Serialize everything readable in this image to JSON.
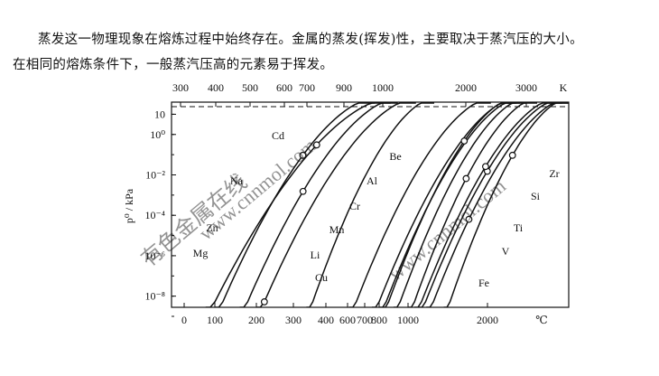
{
  "text": {
    "para1": "蒸发这一物理现象在熔炼过程中始终存在。金属的蒸发(挥发)性，主要取决于蒸汽压的大小。",
    "para2": "在相同的熔炼条件下，一般蒸汽压高的元素易于挥发。"
  },
  "watermark": [
    "有色金属在线",
    "www.cnnmol.com"
  ],
  "chart_data": {
    "type": "line",
    "title": "",
    "ylabel": "p⁰ / kPa",
    "top_axis": {
      "unit": "K",
      "ticks": [
        300,
        400,
        500,
        600,
        700,
        900,
        1000,
        2000,
        3000
      ]
    },
    "bottom_axis": {
      "unit": "℃",
      "ticks": [
        0,
        100,
        200,
        300,
        400,
        600,
        700,
        800,
        1000,
        2000
      ]
    },
    "y_ticks": [
      "10",
      "10⁰",
      "10⁻²",
      "10⁻⁴",
      "10⁻⁶",
      "10⁻⁸"
    ],
    "y_log_range": [
      -9,
      1.6
    ],
    "reference_line": {
      "style": "dashed",
      "value_kPa": 101
    },
    "series": [
      {
        "name": "Zn",
        "x_start_C": 160,
        "x_end_C": 930
      },
      {
        "name": "Mg",
        "x_start_C": 200,
        "x_end_C": 1100
      },
      {
        "name": "Na",
        "x_start_C": 70,
        "x_end_C": 880
      },
      {
        "name": "Cd",
        "x_start_C": 100,
        "x_end_C": 770
      },
      {
        "name": "Li",
        "x_start_C": 340,
        "x_end_C": 1330
      },
      {
        "name": "Mn",
        "x_start_C": 610,
        "x_end_C": 2060
      },
      {
        "name": "Al",
        "x_start_C": 750,
        "x_end_C": 2500
      },
      {
        "name": "Cu",
        "x_start_C": 800,
        "x_end_C": 2560
      },
      {
        "name": "Cr",
        "x_start_C": 900,
        "x_end_C": 2670
      },
      {
        "name": "Be",
        "x_start_C": 820,
        "x_end_C": 2470
      },
      {
        "name": "Fe",
        "x_start_C": 1000,
        "x_end_C": 2860
      },
      {
        "name": "Ti",
        "x_start_C": 1130,
        "x_end_C": 3290
      },
      {
        "name": "V",
        "x_start_C": 1230,
        "x_end_C": 3400
      },
      {
        "name": "Si",
        "x_start_C": 1080,
        "x_end_C": 3200
      },
      {
        "name": "Zr",
        "x_start_C": 1450,
        "x_end_C": 4400
      }
    ]
  }
}
